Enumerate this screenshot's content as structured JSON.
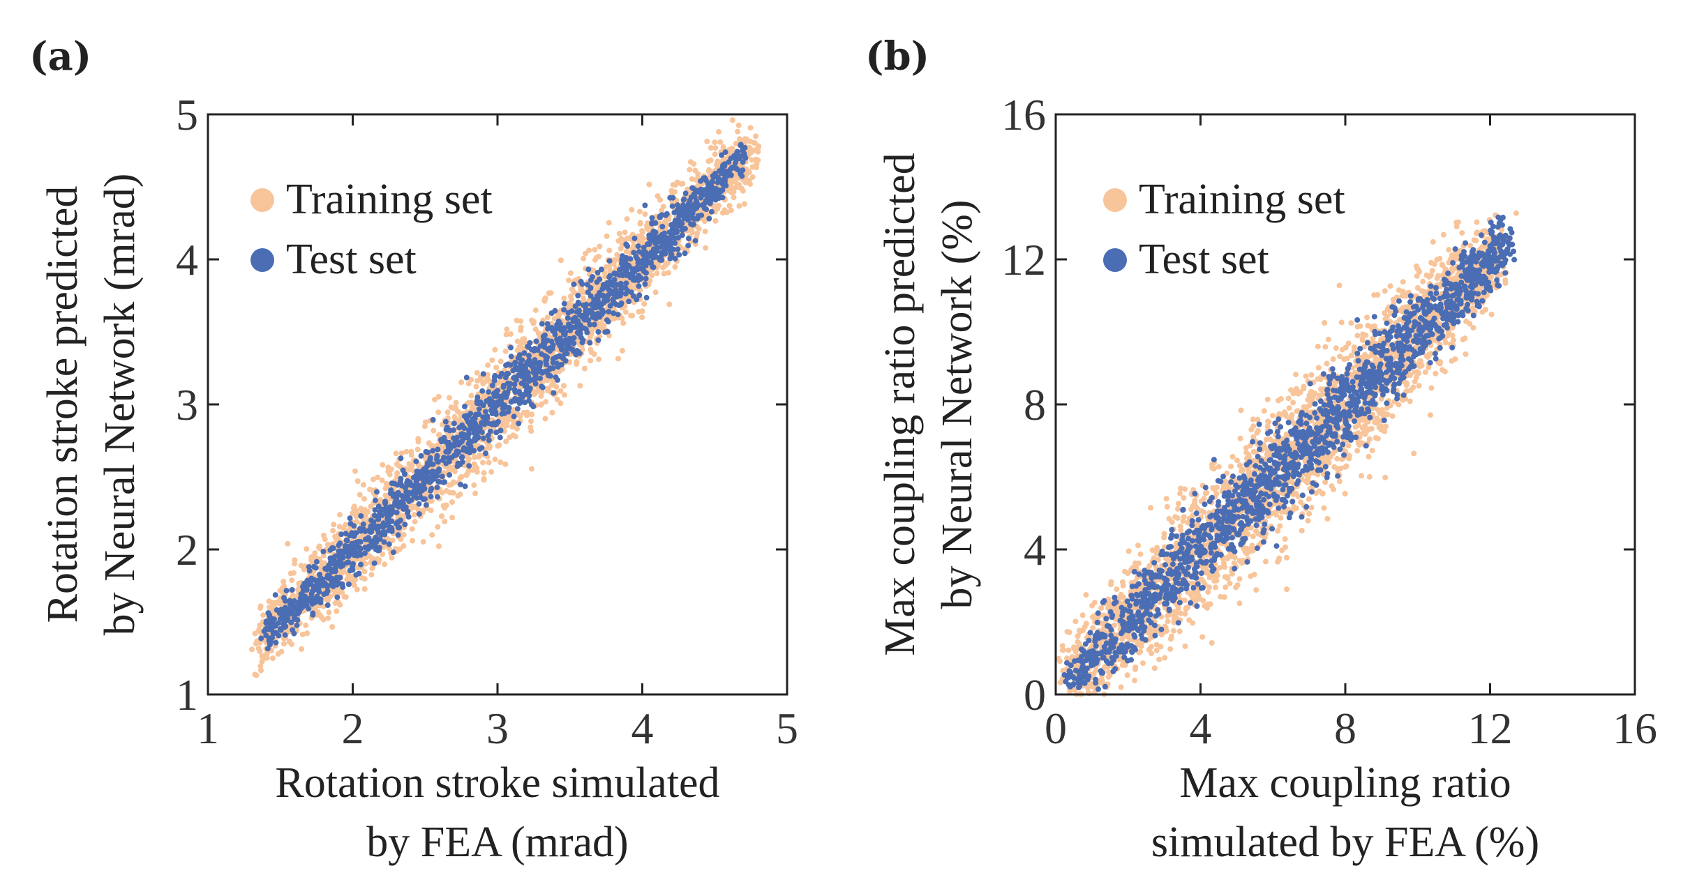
{
  "colors": {
    "training": "#f8c49a",
    "test": "#4a6db4"
  },
  "chart_data": [
    {
      "type": "scatter",
      "panel": "(a)",
      "xlabel_lines": [
        "Rotation stroke simulated",
        "by FEA (mrad)"
      ],
      "ylabel_lines": [
        "Rotation stroke predicted",
        "by Neural Network (mrad)"
      ],
      "xlim": [
        1,
        5
      ],
      "ylim": [
        1,
        5
      ],
      "xticks": [
        1,
        2,
        3,
        4,
        5
      ],
      "yticks": [
        1,
        2,
        3,
        4,
        5
      ],
      "legend": [
        "Training set",
        "Test set"
      ],
      "legend_position": "top-left",
      "series": [
        {
          "name": "Training set",
          "n": 2600,
          "x_range": [
            1.35,
            4.75
          ],
          "spread": 0.14,
          "color_key": "training",
          "seed": 11
        },
        {
          "name": "Test set",
          "n": 1500,
          "x_range": [
            1.4,
            4.7
          ],
          "spread": 0.09,
          "color_key": "test",
          "seed": 23
        }
      ]
    },
    {
      "type": "scatter",
      "panel": "(b)",
      "xlabel_lines": [
        "Max coupling ratio",
        "simulated by FEA (%)"
      ],
      "ylabel_lines": [
        "Max coupling ratio predicted",
        "by Neural Network (%)"
      ],
      "xlim": [
        0,
        16
      ],
      "ylim": [
        0,
        16
      ],
      "xticks": [
        0,
        4,
        8,
        12,
        16
      ],
      "yticks": [
        0,
        4,
        8,
        12,
        16
      ],
      "legend": [
        "Training set",
        "Test set"
      ],
      "legend_position": "top-left",
      "series": [
        {
          "name": "Training set",
          "n": 2800,
          "x_range": [
            0.3,
            12.2
          ],
          "spread": 0.75,
          "color_key": "training",
          "seed": 37
        },
        {
          "name": "Test set",
          "n": 1700,
          "x_range": [
            0.4,
            12.5
          ],
          "spread": 0.5,
          "color_key": "test",
          "seed": 51
        }
      ]
    }
  ]
}
